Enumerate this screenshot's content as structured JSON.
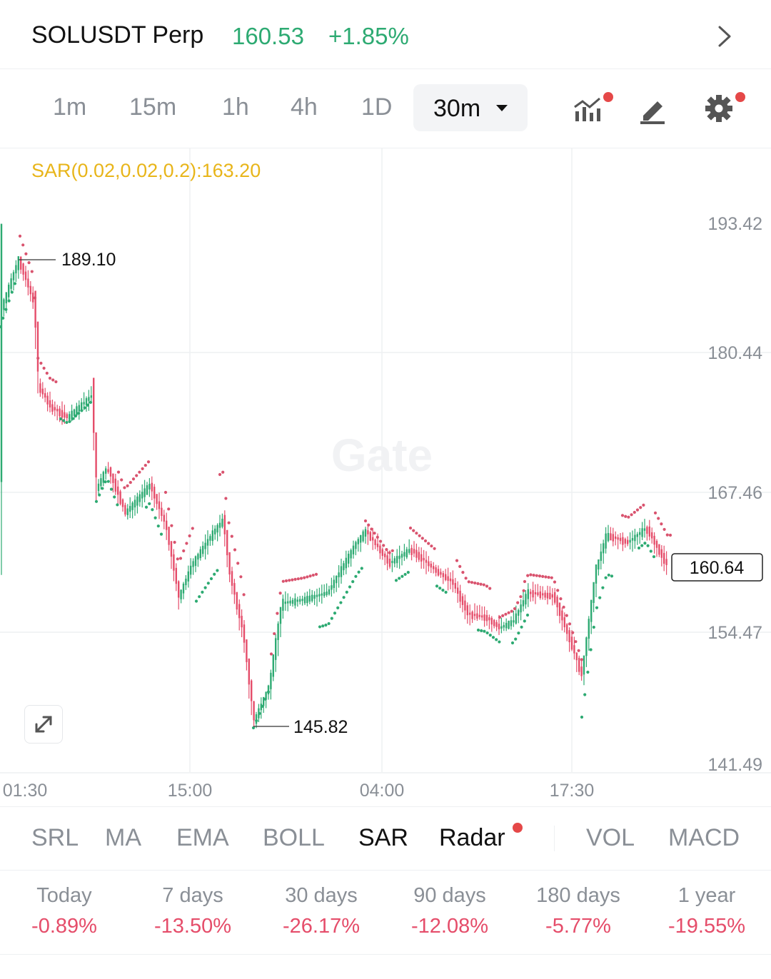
{
  "header": {
    "symbol": "SOLUSDT Perp",
    "price": "160.53",
    "change": "+1.85%"
  },
  "timeframes": [
    "1m",
    "15m",
    "1h",
    "4h",
    "1D"
  ],
  "selected_timeframe": "30m",
  "toolbar_icons": [
    "indicators-icon",
    "draw-icon",
    "gear-icon"
  ],
  "indicator_label": "SAR(0.02,0.02,0.2):163.20",
  "watermark": "Gate",
  "chart_data": {
    "type": "candlestick",
    "y_ticks": [
      "193.42",
      "180.44",
      "167.46",
      "154.47",
      "141.49"
    ],
    "x_ticks": [
      "01:30",
      "15:00",
      "04:00",
      "17:30"
    ],
    "high_marker": "189.10",
    "low_marker": "145.82",
    "last_price_label": "160.64",
    "ylim": [
      141.49,
      193.42
    ],
    "sar_value": 163.2,
    "colors": {
      "up": "#2daa72",
      "down": "#e54d6a",
      "sar_up": "#2daa72",
      "sar_down": "#d9536e"
    }
  },
  "indicator_tabs": [
    "SRL",
    "MA",
    "EMA",
    "BOLL",
    "SAR",
    "Radar",
    "VOL",
    "MACD"
  ],
  "active_indicator": "SAR",
  "performance": [
    {
      "label": "Today",
      "value": "-0.89%"
    },
    {
      "label": "7 days",
      "value": "-13.50%"
    },
    {
      "label": "30 days",
      "value": "-26.17%"
    },
    {
      "label": "90 days",
      "value": "-12.08%"
    },
    {
      "label": "180 days",
      "value": "-5.77%"
    },
    {
      "label": "1 year",
      "value": "-19.55%"
    }
  ]
}
